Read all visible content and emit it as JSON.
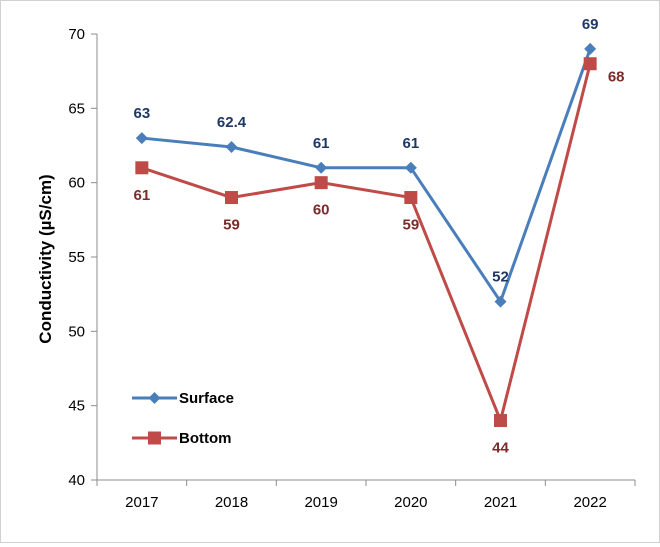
{
  "chart_data": {
    "type": "line",
    "title": "",
    "xlabel": "",
    "ylabel": "Conductivity (µS/cm)",
    "categories": [
      "2017",
      "2018",
      "2019",
      "2020",
      "2021",
      "2022"
    ],
    "ylim": [
      40,
      70
    ],
    "yticks": [
      40,
      45,
      50,
      55,
      60,
      65,
      70
    ],
    "grid": false,
    "legend_position": "bottom-left",
    "series": [
      {
        "name": "Surface",
        "color": "#4a7ebb",
        "label_color": "#1f3864",
        "marker": "diamond",
        "values": [
          63,
          62.4,
          61,
          61,
          52,
          69
        ],
        "labels": [
          "63",
          "62.4",
          "61",
          "61",
          "52",
          "69"
        ],
        "label_position": "above"
      },
      {
        "name": "Bottom",
        "color": "#be4b48",
        "label_color": "#7b2c2a",
        "marker": "square",
        "values": [
          61,
          59,
          60,
          59,
          44,
          68
        ],
        "labels": [
          "61",
          "59",
          "60",
          "59",
          "44",
          "68"
        ],
        "label_position": "below"
      }
    ]
  }
}
